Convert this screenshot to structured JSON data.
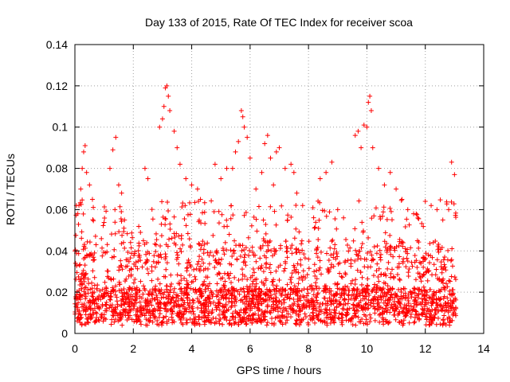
{
  "chart_data": {
    "type": "scatter",
    "title": "Day 133 of 2015, Rate Of TEC Index for receiver scoa",
    "xlabel": "GPS time / hours",
    "ylabel": "ROTI / TECUs",
    "xlim": [
      0,
      14
    ],
    "ylim": [
      0,
      0.14
    ],
    "xticks": [
      0,
      2,
      4,
      6,
      8,
      10,
      12,
      14
    ],
    "yticks": [
      0,
      0.02,
      0.04,
      0.06,
      0.08,
      0.1,
      0.12,
      0.14
    ],
    "ytick_labels": [
      "0",
      "0.02",
      "0.04",
      "0.06",
      "0.08",
      "0.1",
      "0.12",
      "0.14"
    ],
    "xtick_labels": [
      "0",
      "2",
      "4",
      "6",
      "8",
      "10",
      "12",
      "14"
    ],
    "grid": true,
    "marker": "+",
    "color": "#ff0000",
    "data_extent_x": [
      0,
      13.05
    ],
    "series": [
      {
        "points": [
          [
            0.05,
            0.062
          ],
          [
            0.1,
            0.058
          ],
          [
            0.2,
            0.07
          ],
          [
            0.25,
            0.08
          ],
          [
            0.3,
            0.088
          ],
          [
            0.35,
            0.091
          ],
          [
            0.4,
            0.078
          ],
          [
            0.5,
            0.072
          ],
          [
            0.6,
            0.065
          ],
          [
            1.2,
            0.08
          ],
          [
            1.3,
            0.089
          ],
          [
            1.4,
            0.095
          ],
          [
            1.5,
            0.072
          ],
          [
            1.6,
            0.068
          ],
          [
            1.7,
            0.055
          ],
          [
            2.4,
            0.08
          ],
          [
            2.5,
            0.075
          ],
          [
            2.9,
            0.1
          ],
          [
            3.0,
            0.104
          ],
          [
            3.05,
            0.11
          ],
          [
            3.1,
            0.119
          ],
          [
            3.15,
            0.12
          ],
          [
            3.2,
            0.115
          ],
          [
            3.25,
            0.108
          ],
          [
            3.4,
            0.098
          ],
          [
            3.5,
            0.09
          ],
          [
            3.6,
            0.082
          ],
          [
            3.8,
            0.075
          ],
          [
            4.0,
            0.072
          ],
          [
            4.2,
            0.07
          ],
          [
            4.3,
            0.065
          ],
          [
            4.8,
            0.082
          ],
          [
            5.0,
            0.075
          ],
          [
            5.2,
            0.08
          ],
          [
            5.4,
            0.08
          ],
          [
            5.5,
            0.088
          ],
          [
            5.6,
            0.093
          ],
          [
            5.7,
            0.108
          ],
          [
            5.75,
            0.105
          ],
          [
            5.8,
            0.1
          ],
          [
            5.9,
            0.095
          ],
          [
            6.0,
            0.085
          ],
          [
            6.2,
            0.07
          ],
          [
            6.4,
            0.078
          ],
          [
            6.5,
            0.092
          ],
          [
            6.6,
            0.096
          ],
          [
            6.7,
            0.085
          ],
          [
            6.8,
            0.072
          ],
          [
            6.9,
            0.088
          ],
          [
            7.0,
            0.09
          ],
          [
            7.2,
            0.08
          ],
          [
            7.4,
            0.082
          ],
          [
            7.5,
            0.078
          ],
          [
            7.6,
            0.068
          ],
          [
            7.8,
            0.062
          ],
          [
            8.4,
            0.075
          ],
          [
            8.6,
            0.078
          ],
          [
            8.8,
            0.083
          ],
          [
            9.0,
            0.06
          ],
          [
            9.2,
            0.056
          ],
          [
            9.6,
            0.096
          ],
          [
            9.7,
            0.098
          ],
          [
            9.8,
            0.09
          ],
          [
            9.9,
            0.101
          ],
          [
            10.0,
            0.1
          ],
          [
            10.05,
            0.112
          ],
          [
            10.1,
            0.115
          ],
          [
            10.15,
            0.108
          ],
          [
            10.2,
            0.09
          ],
          [
            10.4,
            0.08
          ],
          [
            10.6,
            0.072
          ],
          [
            10.8,
            0.078
          ],
          [
            11.0,
            0.07
          ],
          [
            11.2,
            0.065
          ],
          [
            11.4,
            0.06
          ],
          [
            11.6,
            0.058
          ],
          [
            12.0,
            0.064
          ],
          [
            12.2,
            0.062
          ],
          [
            12.4,
            0.06
          ],
          [
            12.6,
            0.055
          ],
          [
            12.8,
            0.06
          ],
          [
            12.9,
            0.083
          ],
          [
            13.0,
            0.077
          ]
        ]
      }
    ]
  }
}
